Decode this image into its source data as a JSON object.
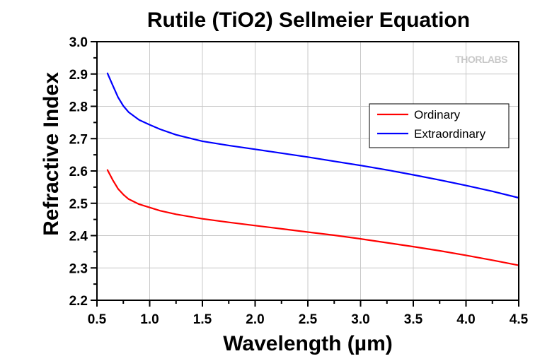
{
  "chart_data": {
    "type": "line",
    "title": "Rutile (TiO2) Sellmeier Equation",
    "xlabel": "Wavelength (µm)",
    "ylabel": "Refractive Index",
    "xlim": [
      0.5,
      4.5
    ],
    "ylim": [
      2.2,
      3.0
    ],
    "xticks": [
      0.5,
      1.0,
      1.5,
      2.0,
      2.5,
      3.0,
      3.5,
      4.0,
      4.5
    ],
    "xtick_labels": [
      "0.5",
      "1.0",
      "1.5",
      "2.0",
      "2.5",
      "3.0",
      "3.5",
      "4.0",
      "4.5"
    ],
    "yticks": [
      2.2,
      2.3,
      2.4,
      2.5,
      2.6,
      2.7,
      2.8,
      2.9,
      3.0
    ],
    "ytick_labels": [
      "2.2",
      "2.3",
      "2.4",
      "2.5",
      "2.6",
      "2.7",
      "2.8",
      "2.9",
      "3.0"
    ],
    "grid": true,
    "legend_position": "top-right",
    "series": [
      {
        "name": "Ordinary",
        "color": "#ff0000",
        "x": [
          0.6,
          0.65,
          0.7,
          0.75,
          0.8,
          0.9,
          1.0,
          1.1,
          1.25,
          1.5,
          1.75,
          2.0,
          2.25,
          2.5,
          2.75,
          3.0,
          3.25,
          3.5,
          3.75,
          4.0,
          4.25,
          4.5
        ],
        "values": [
          2.603,
          2.572,
          2.545,
          2.527,
          2.513,
          2.497,
          2.487,
          2.477,
          2.466,
          2.452,
          2.441,
          2.431,
          2.421,
          2.411,
          2.401,
          2.39,
          2.378,
          2.366,
          2.353,
          2.339,
          2.324,
          2.308
        ]
      },
      {
        "name": "Extraordinary",
        "color": "#0000ff",
        "x": [
          0.6,
          0.65,
          0.7,
          0.75,
          0.8,
          0.9,
          1.0,
          1.1,
          1.25,
          1.5,
          1.75,
          2.0,
          2.25,
          2.5,
          2.75,
          3.0,
          3.25,
          3.5,
          3.75,
          4.0,
          4.25,
          4.5
        ],
        "values": [
          2.902,
          2.865,
          2.828,
          2.801,
          2.782,
          2.758,
          2.743,
          2.729,
          2.712,
          2.692,
          2.679,
          2.667,
          2.655,
          2.643,
          2.63,
          2.617,
          2.603,
          2.588,
          2.572,
          2.555,
          2.537,
          2.517
        ]
      }
    ]
  },
  "watermark": "THORLABS"
}
